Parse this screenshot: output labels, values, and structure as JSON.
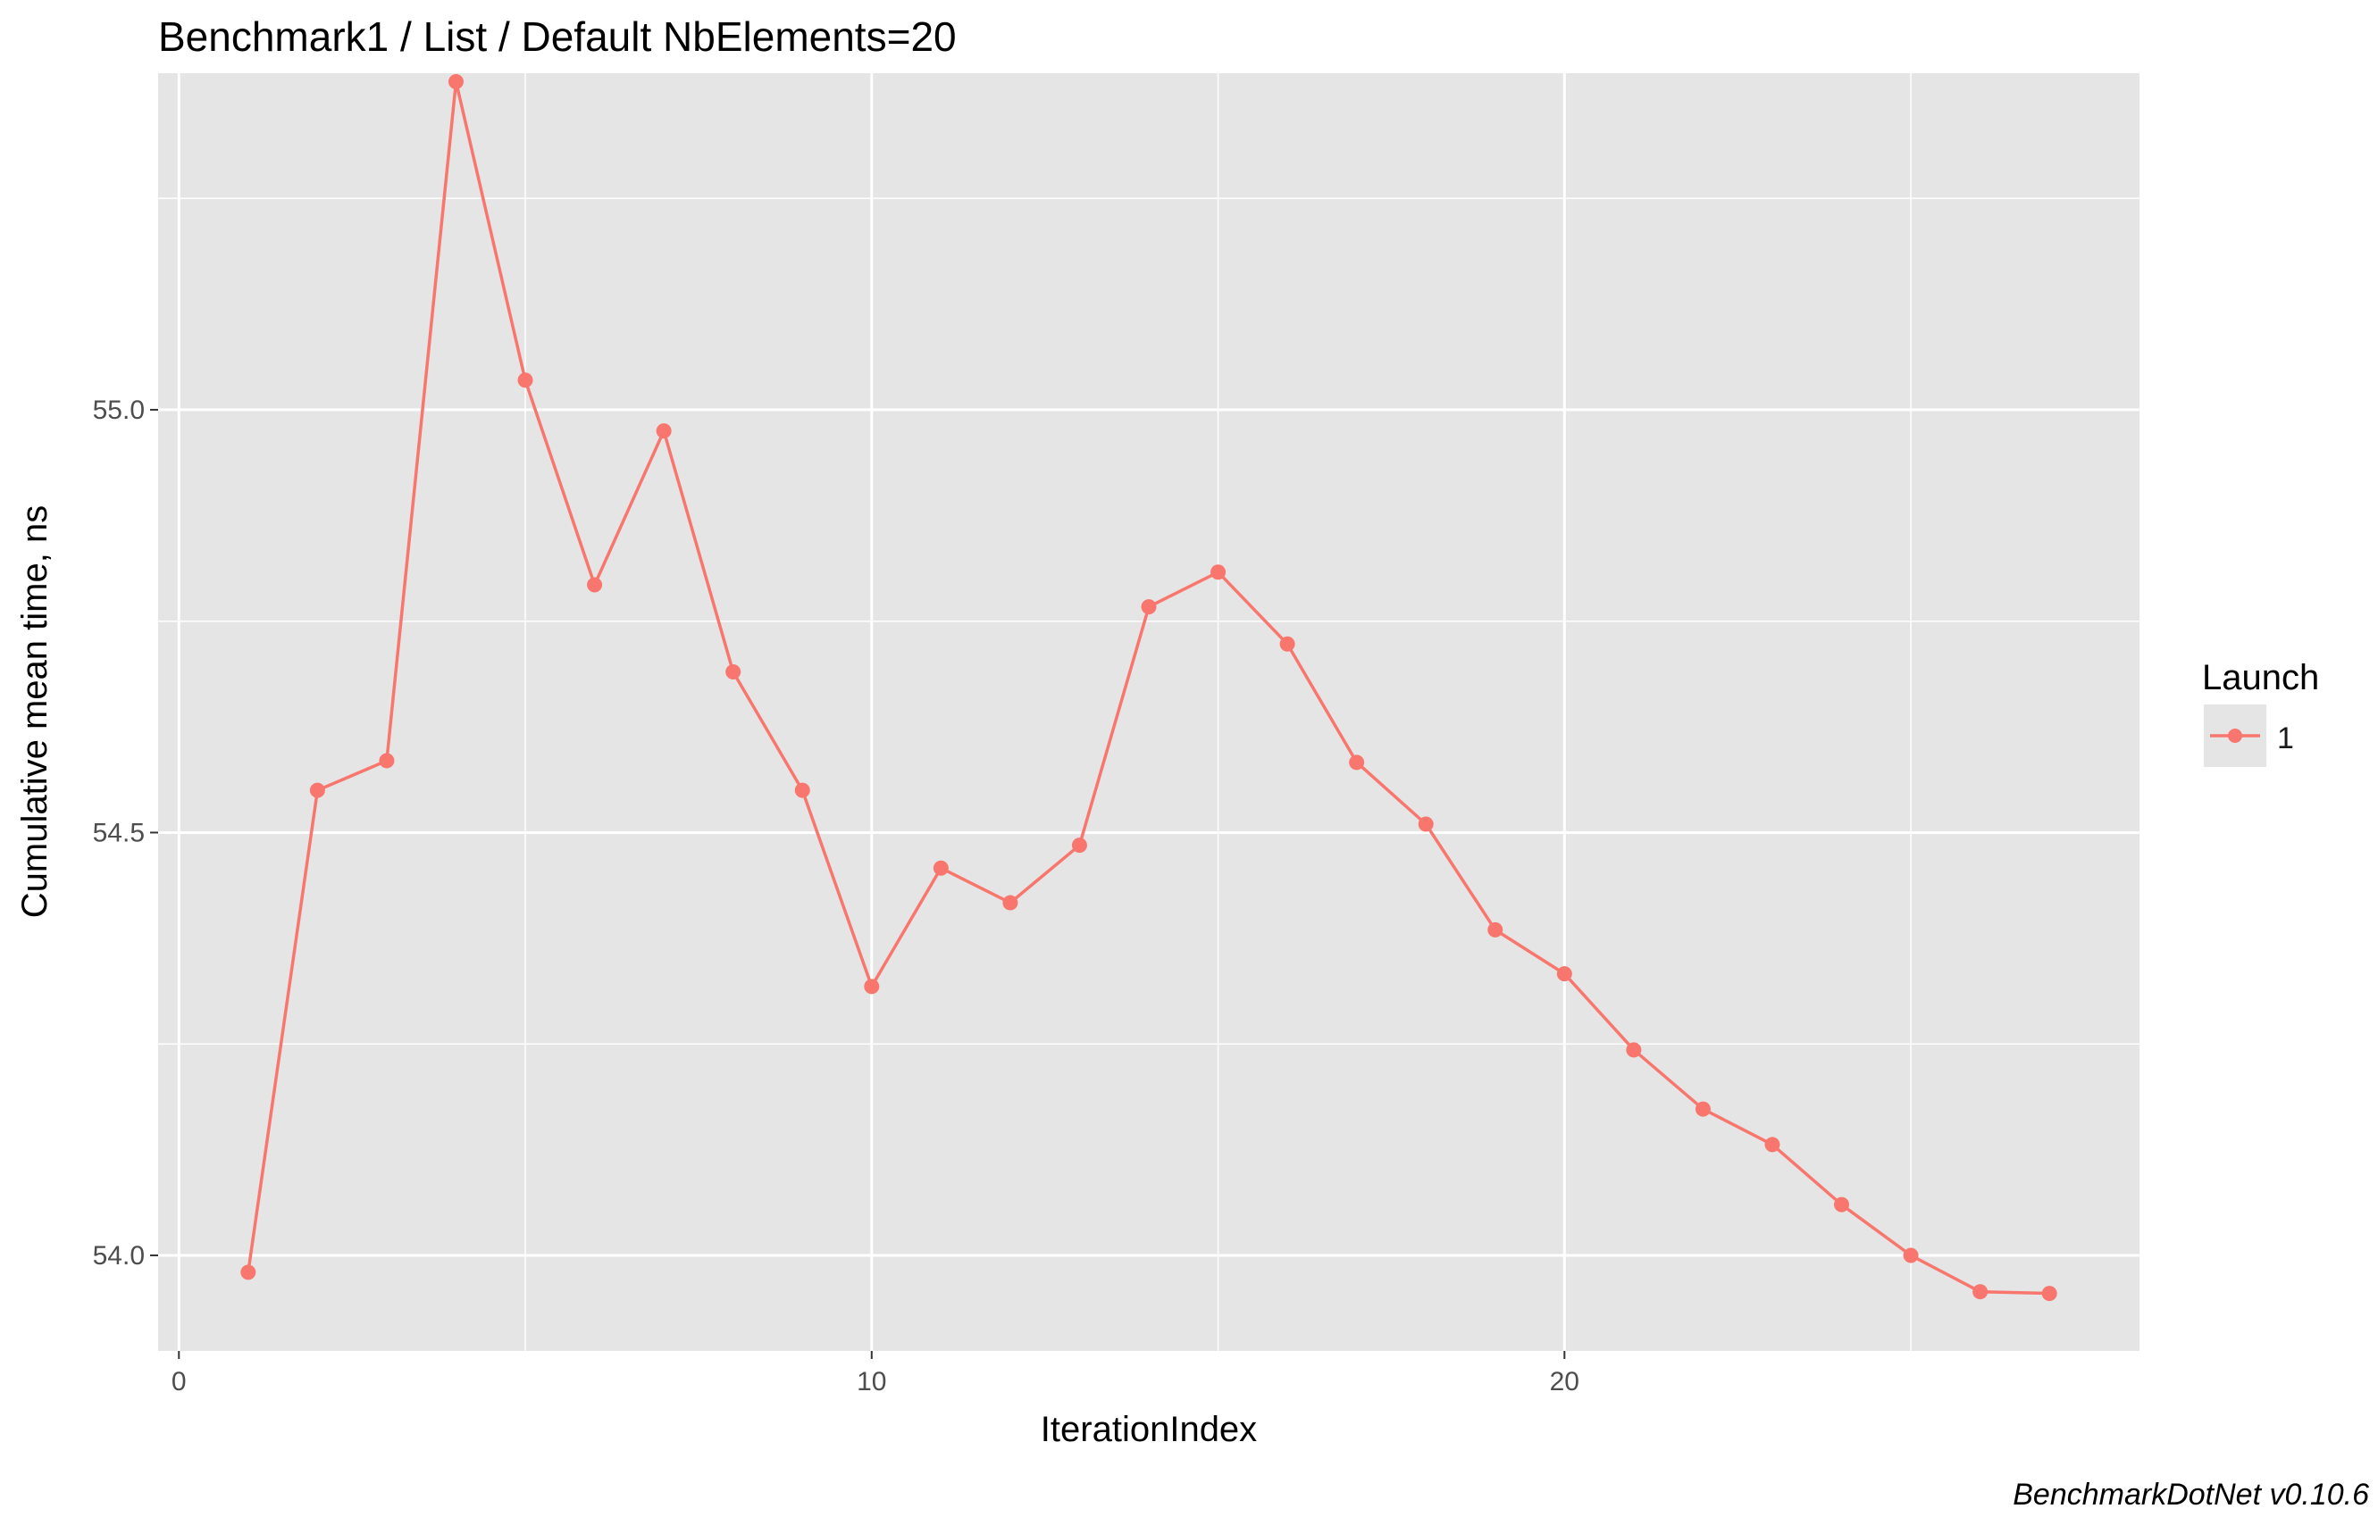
{
  "chart_data": {
    "type": "line",
    "title": "Benchmark1 / List / Default NbElements=20",
    "xlabel": "IterationIndex",
    "ylabel": "Cumulative mean time, ns",
    "caption": "BenchmarkDotNet v0.10.6",
    "xlim": [
      -0.3,
      28.3
    ],
    "ylim": [
      53.887,
      55.398
    ],
    "x_ticks": [
      0,
      10,
      20
    ],
    "x_tick_labels": [
      "0",
      "10",
      "20"
    ],
    "y_ticks": [
      54.0,
      54.5,
      55.0
    ],
    "y_tick_labels": [
      "54.0",
      "54.5",
      "55.0"
    ],
    "grid": true,
    "legend": {
      "title": "Launch",
      "position": "right",
      "entries": [
        "1"
      ]
    },
    "colors": {
      "series": "#f8766d",
      "panel": "#e5e5e5",
      "grid": "#ffffff"
    },
    "series": [
      {
        "name": "1",
        "x": [
          1,
          2,
          3,
          4,
          5,
          6,
          7,
          8,
          9,
          10,
          11,
          12,
          13,
          14,
          15,
          16,
          17,
          18,
          19,
          20,
          21,
          22,
          23,
          24,
          25,
          26,
          27
        ],
        "values": [
          53.98,
          54.55,
          54.585,
          55.388,
          55.035,
          54.793,
          54.975,
          54.69,
          54.55,
          54.318,
          54.458,
          54.417,
          54.485,
          54.767,
          54.808,
          54.723,
          54.583,
          54.51,
          54.385,
          54.333,
          54.243,
          54.173,
          54.131,
          54.06,
          54.0,
          53.957,
          53.955
        ]
      }
    ]
  }
}
